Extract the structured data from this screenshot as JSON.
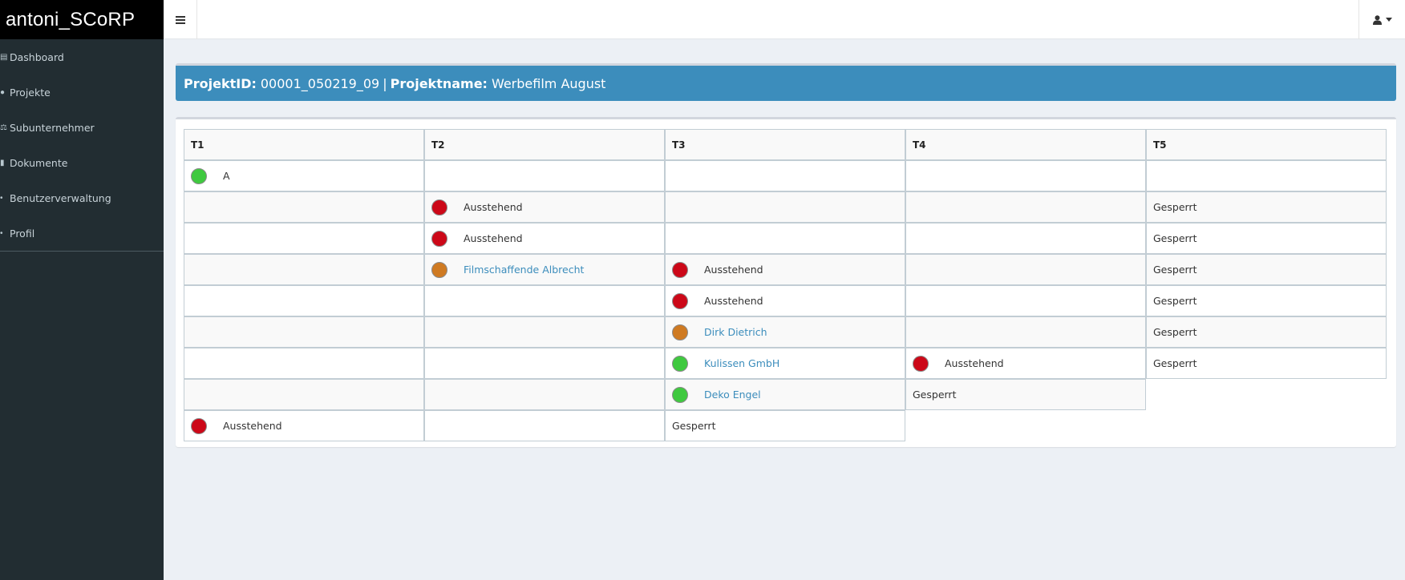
{
  "app": {
    "title": "antoni_SCoRP"
  },
  "topbar": {
    "menu_toggle_icon": "hamburger-icon",
    "user_icon": "user-icon"
  },
  "sidebar": {
    "items": [
      {
        "label": "Dashboard",
        "icon": "dashboard-icon"
      },
      {
        "label": "Projekte",
        "icon": "globe-icon"
      },
      {
        "label": "Subunternehmer",
        "icon": "balance-icon"
      },
      {
        "label": "Dokumente",
        "icon": "file-icon"
      },
      {
        "label": "Benutzerverwaltung",
        "icon": "users-icon"
      },
      {
        "label": "Profil",
        "icon": "user-icon"
      }
    ]
  },
  "project": {
    "id_label": "ProjektID:",
    "id_value": "00001_050219_09",
    "separator": "|",
    "name_label": "Projektname:",
    "name_value": "Werbefilm August"
  },
  "colors": {
    "green": "#3fc93f",
    "red": "#cc0818",
    "orange": "#cf7a22",
    "link": "#3c8dbc",
    "header": "#3c8dbc"
  },
  "table": {
    "headers": [
      "T1",
      "T2",
      "T3",
      "T4",
      "T5"
    ],
    "rows": [
      [
        {
          "status": "green",
          "text": "A"
        },
        {},
        {},
        {},
        {}
      ],
      [
        {},
        {
          "status": "red",
          "text": "Ausstehend"
        },
        {},
        {},
        {
          "text": "Gesperrt"
        }
      ],
      [
        {},
        {
          "status": "red",
          "text": "Ausstehend"
        },
        {},
        {},
        {
          "text": "Gesperrt"
        }
      ],
      [
        {},
        {
          "status": "orange",
          "text": "Filmschaffende Albrecht",
          "link": true
        },
        {
          "status": "red",
          "text": "Ausstehend"
        },
        {},
        {
          "text": "Gesperrt"
        }
      ],
      [
        {},
        {},
        {
          "status": "red",
          "text": "Ausstehend"
        },
        {},
        {
          "text": "Gesperrt"
        }
      ],
      [
        {},
        {},
        {
          "status": "orange",
          "text": "Dirk Dietrich",
          "link": true
        },
        {},
        {
          "text": "Gesperrt"
        }
      ],
      [
        {},
        {},
        {
          "status": "green",
          "text": "Kulissen GmbH",
          "link": true
        },
        {
          "status": "red",
          "text": "Ausstehend"
        },
        {
          "text": "Gesperrt"
        }
      ],
      [
        {},
        {},
        {
          "status": "green",
          "text": "Deko Engel",
          "link": true
        },
        {
          "text": "Gesperrt"
        }
      ],
      [
        {
          "status": "red",
          "text": "Ausstehend"
        },
        {},
        {
          "text": "Gesperrt"
        }
      ]
    ]
  }
}
